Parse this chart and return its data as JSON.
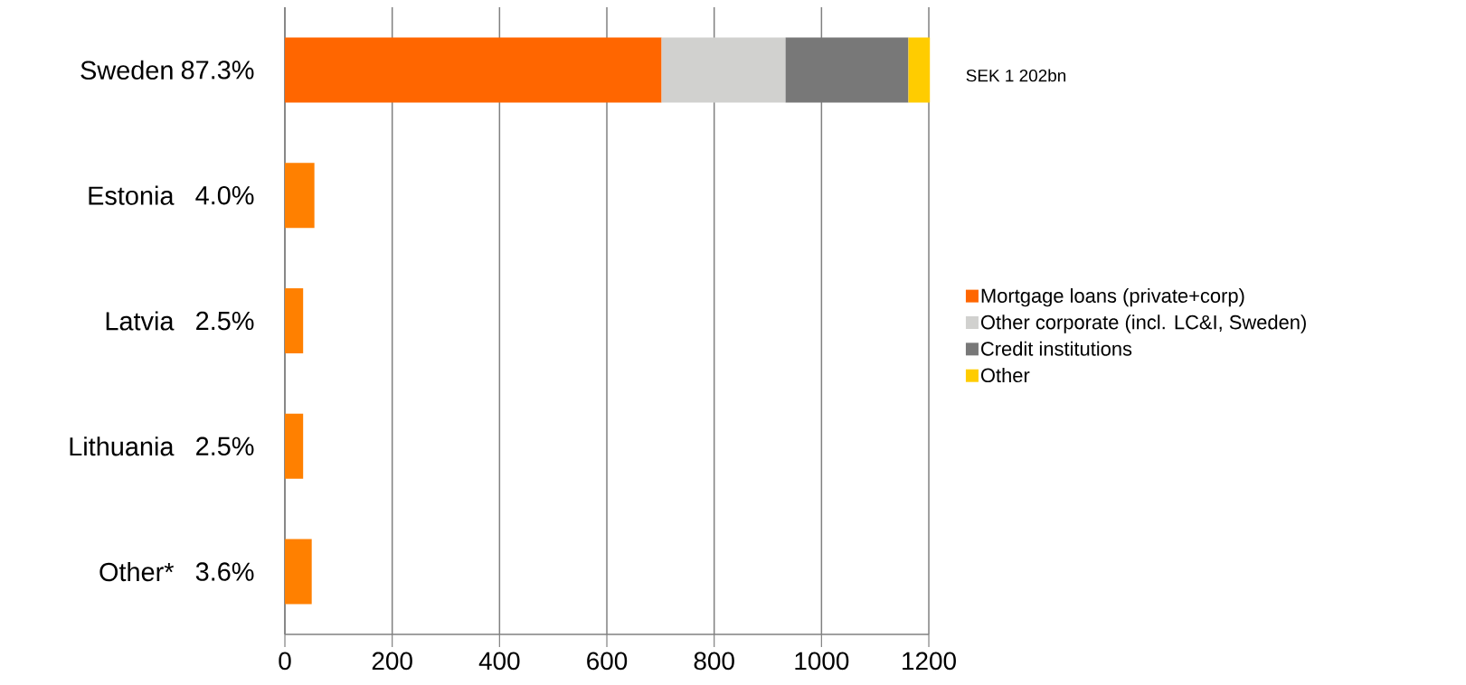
{
  "chart_data": {
    "type": "bar",
    "orientation": "horizontal",
    "stacked": true,
    "categories": [
      "Sweden",
      "Estonia",
      "Latvia",
      "Lithuania",
      "Other*"
    ],
    "series": [
      {
        "name": "Mortgage loans (private+corp)",
        "color": "#ff6600",
        "colors": [
          "#ff6600",
          "#ff8000",
          "#ff8000",
          "#ff8000",
          "#ff8000"
        ],
        "values": [
          702,
          55,
          34,
          34,
          50
        ]
      },
      {
        "name": "Other corporate (incl. LC&I,  Sweden)",
        "color": "#d1d1cf",
        "values": [
          231,
          null,
          null,
          null,
          null
        ]
      },
      {
        "name": "Credit institutions",
        "color": "#787878",
        "values": [
          229,
          null,
          null,
          null,
          null
        ]
      },
      {
        "name": "Other",
        "color": "#ffcc00",
        "values": [
          40,
          null,
          null,
          null,
          null
        ]
      }
    ],
    "xlim": [
      0,
      1200
    ],
    "xticks": [
      0,
      200,
      400,
      600,
      800,
      1000,
      1200
    ],
    "grid": "x",
    "legend": "right",
    "annotations": [
      "87.3%",
      "4.0%",
      "2.5%",
      "2.5%",
      "3.6%",
      {
        "text": "SEK 1 202bn",
        "x": 1202,
        "y": "Sweden"
      }
    ]
  }
}
